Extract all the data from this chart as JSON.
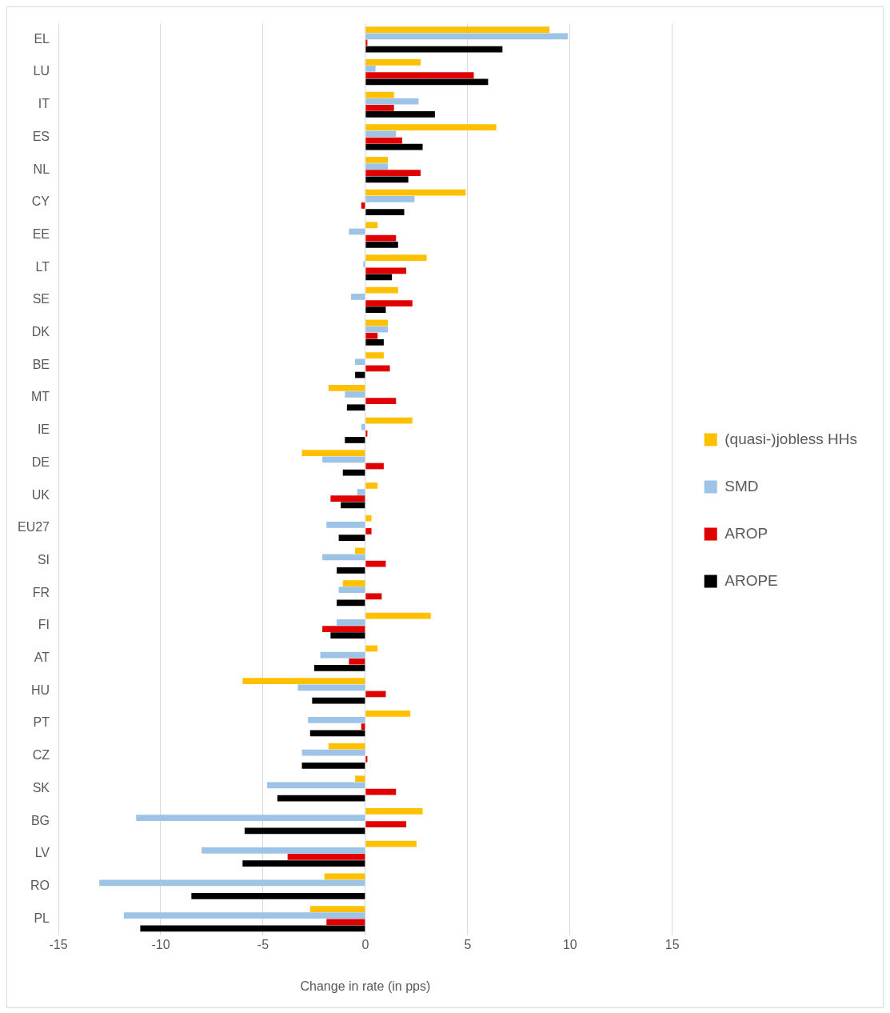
{
  "chart_data": {
    "type": "bar",
    "orientation": "horizontal",
    "xlabel": "Change in rate (in pps)",
    "categories": [
      "EL",
      "LU",
      "IT",
      "ES",
      "NL",
      "CY",
      "EE",
      "LT",
      "SE",
      "DK",
      "BE",
      "MT",
      "IE",
      "DE",
      "UK",
      "EU27",
      "SI",
      "FR",
      "FI",
      "AT",
      "HU",
      "PT",
      "CZ",
      "SK",
      "BG",
      "LV",
      "RO",
      "PL"
    ],
    "series": [
      {
        "name": "(quasi-)jobless HHs",
        "color": "#ffc000",
        "values": [
          9.0,
          2.7,
          1.4,
          6.4,
          1.1,
          4.9,
          0.6,
          3.0,
          1.6,
          1.1,
          0.9,
          -1.8,
          2.3,
          -3.1,
          0.6,
          0.3,
          -0.5,
          -1.1,
          3.2,
          0.6,
          -6.0,
          2.2,
          -1.8,
          -0.5,
          2.8,
          2.5,
          -2.0,
          -2.7
        ]
      },
      {
        "name": "SMD",
        "color": "#9dc3e6",
        "values": [
          9.9,
          0.5,
          2.6,
          1.5,
          1.1,
          2.4,
          -0.8,
          -0.1,
          -0.7,
          1.1,
          -0.5,
          -1.0,
          -0.2,
          -2.1,
          -0.4,
          -1.9,
          -2.1,
          -1.3,
          -1.4,
          -2.2,
          -3.3,
          -2.8,
          -3.1,
          -4.8,
          -11.2,
          -8.0,
          -13.0,
          -11.8
        ]
      },
      {
        "name": "AROP",
        "color": "#e00000",
        "values": [
          0.1,
          5.3,
          1.4,
          1.8,
          2.7,
          -0.2,
          1.5,
          2.0,
          2.3,
          0.6,
          1.2,
          1.5,
          0.1,
          0.9,
          -1.7,
          0.3,
          1.0,
          0.8,
          -2.1,
          -0.8,
          1.0,
          -0.2,
          0.1,
          1.5,
          2.0,
          -3.8,
          0,
          -1.9
        ]
      },
      {
        "name": "AROPE",
        "color": "#000000",
        "values": [
          6.7,
          6.0,
          3.4,
          2.8,
          2.1,
          1.9,
          1.6,
          1.3,
          1.0,
          0.9,
          -0.5,
          -0.9,
          -1.0,
          -1.1,
          -1.2,
          -1.3,
          -1.4,
          -1.4,
          -1.7,
          -2.5,
          -2.6,
          -2.7,
          -3.1,
          -4.3,
          -5.9,
          -6.0,
          -8.5,
          -11.0
        ]
      }
    ],
    "xlim": [
      -15,
      15
    ],
    "xticks": [
      -15,
      -10,
      -5,
      0,
      5,
      10,
      15
    ],
    "grid": "x",
    "legend": "right"
  }
}
